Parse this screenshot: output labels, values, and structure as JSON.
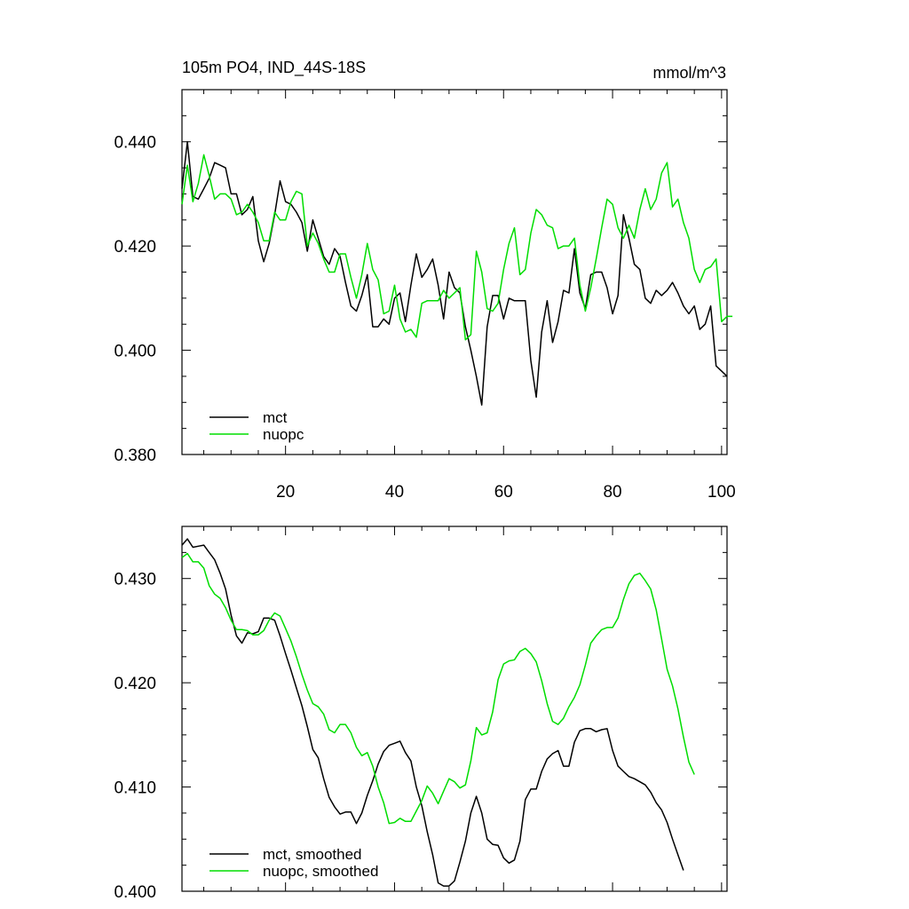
{
  "chart_data": [
    {
      "type": "line",
      "title": "105m PO4, IND_44S-18S",
      "units": "mmol/m^3",
      "xlim": [
        1,
        101
      ],
      "ylim": [
        0.38,
        0.45
      ],
      "xticks": [
        20,
        40,
        60,
        80,
        100
      ],
      "yticks": [
        0.38,
        0.4,
        0.42,
        0.44
      ],
      "ytick_labels": [
        "0.380",
        "0.400",
        "0.420",
        "0.440"
      ],
      "grid": false,
      "legend": "bottom-left",
      "series": [
        {
          "name": "mct",
          "color": "#000000",
          "values": [
            0.431,
            0.44,
            0.4295,
            0.429,
            0.431,
            0.433,
            0.436,
            0.4355,
            0.435,
            0.43,
            0.43,
            0.426,
            0.427,
            0.4295,
            0.421,
            0.417,
            0.4205,
            0.426,
            0.4325,
            0.4285,
            0.428,
            0.4265,
            0.4245,
            0.419,
            0.425,
            0.4215,
            0.418,
            0.4165,
            0.4195,
            0.418,
            0.413,
            0.4085,
            0.4075,
            0.4105,
            0.4145,
            0.4045,
            0.4045,
            0.406,
            0.405,
            0.41,
            0.411,
            0.4055,
            0.4125,
            0.4185,
            0.414,
            0.4155,
            0.4175,
            0.4125,
            0.406,
            0.415,
            0.412,
            0.411,
            0.4045,
            0.4,
            0.395,
            0.3895,
            0.4045,
            0.4105,
            0.4105,
            0.406,
            0.41,
            0.4095,
            0.4095,
            0.4095,
            0.398,
            0.391,
            0.4035,
            0.4095,
            0.4015,
            0.4055,
            0.4115,
            0.411,
            0.4195,
            0.411,
            0.408,
            0.4145,
            0.415,
            0.415,
            0.412,
            0.407,
            0.4105,
            0.426,
            0.4215,
            0.4165,
            0.4155,
            0.41,
            0.409,
            0.4115,
            0.4105,
            0.4115,
            0.413,
            0.411,
            0.4085,
            0.407,
            0.4085,
            0.404,
            0.405,
            0.4085,
            0.397,
            0.396,
            0.395
          ]
        },
        {
          "name": "nuopc",
          "color": "#00dd00",
          "values": [
            0.428,
            0.4355,
            0.4285,
            0.432,
            0.4375,
            0.4335,
            0.429,
            0.43,
            0.43,
            0.429,
            0.426,
            0.4265,
            0.428,
            0.4265,
            0.4245,
            0.421,
            0.421,
            0.4265,
            0.425,
            0.425,
            0.4285,
            0.4305,
            0.43,
            0.42,
            0.4225,
            0.4205,
            0.4175,
            0.415,
            0.415,
            0.4185,
            0.4185,
            0.414,
            0.41,
            0.4145,
            0.4205,
            0.4155,
            0.4135,
            0.407,
            0.4075,
            0.4125,
            0.406,
            0.4035,
            0.404,
            0.4025,
            0.409,
            0.4095,
            0.4095,
            0.4095,
            0.4115,
            0.41,
            0.411,
            0.412,
            0.402,
            0.403,
            0.419,
            0.415,
            0.408,
            0.4075,
            0.409,
            0.4155,
            0.4205,
            0.4235,
            0.4145,
            0.4155,
            0.4225,
            0.427,
            0.426,
            0.424,
            0.4235,
            0.4195,
            0.42,
            0.42,
            0.4215,
            0.4125,
            0.4075,
            0.412,
            0.4175,
            0.4235,
            0.429,
            0.428,
            0.4235,
            0.4215,
            0.424,
            0.4215,
            0.427,
            0.431,
            0.427,
            0.429,
            0.434,
            0.436,
            0.4275,
            0.429,
            0.4245,
            0.4215,
            0.4155,
            0.413,
            0.4155,
            0.416,
            0.4175,
            0.4055,
            0.4065,
            0.4065
          ]
        }
      ]
    },
    {
      "type": "line",
      "xlim": [
        1,
        101
      ],
      "ylim": [
        0.4,
        0.435
      ],
      "xticks": [
        20,
        40,
        60,
        80,
        100
      ],
      "yticks": [
        0.4,
        0.41,
        0.42,
        0.43
      ],
      "ytick_labels": [
        "0.400",
        "0.410",
        "0.420",
        "0.430"
      ],
      "grid": false,
      "legend": "bottom-left",
      "series": [
        {
          "name": "mct, smoothed",
          "color": "#000000",
          "values": [
            0.4332,
            0.4338,
            0.433,
            0.4331,
            0.4332,
            0.4325,
            0.4318,
            0.4305,
            0.429,
            0.4265,
            0.4245,
            0.4238,
            0.4248,
            0.4247,
            0.4249,
            0.4262,
            0.4262,
            0.426,
            0.4245,
            0.4228,
            0.4212,
            0.4195,
            0.4178,
            0.4158,
            0.4136,
            0.4128,
            0.4108,
            0.409,
            0.4081,
            0.4074,
            0.4076,
            0.4076,
            0.4065,
            0.4075,
            0.4092,
            0.4106,
            0.4122,
            0.4134,
            0.414,
            0.4142,
            0.4144,
            0.4133,
            0.4125,
            0.41,
            0.4082,
            0.4057,
            0.4035,
            0.4008,
            0.4005,
            0.4005,
            0.401,
            0.4028,
            0.4048,
            0.4075,
            0.4091,
            0.4075,
            0.405,
            0.4045,
            0.4044,
            0.4032,
            0.4027,
            0.403,
            0.4048,
            0.4088,
            0.4098,
            0.4098,
            0.4115,
            0.4127,
            0.4132,
            0.4135,
            0.412,
            0.412,
            0.4143,
            0.4154,
            0.4156,
            0.4156,
            0.4153,
            0.4155,
            0.4156,
            0.4135,
            0.412,
            0.4115,
            0.411,
            0.4108,
            0.4105,
            0.4102,
            0.4095,
            0.4085,
            0.4078,
            0.4066,
            0.405,
            0.4035,
            0.402
          ]
        },
        {
          "name": "nuopc, smoothed",
          "color": "#00dd00",
          "values": [
            0.432,
            0.4324,
            0.4316,
            0.4316,
            0.431,
            0.4293,
            0.4285,
            0.4281,
            0.4272,
            0.426,
            0.4251,
            0.4251,
            0.425,
            0.4246,
            0.4246,
            0.425,
            0.426,
            0.4267,
            0.4264,
            0.4252,
            0.424,
            0.4225,
            0.4208,
            0.4193,
            0.418,
            0.4177,
            0.417,
            0.4155,
            0.4152,
            0.416,
            0.416,
            0.4152,
            0.4138,
            0.413,
            0.4133,
            0.412,
            0.41,
            0.4085,
            0.4065,
            0.4066,
            0.407,
            0.4067,
            0.4067,
            0.4077,
            0.4087,
            0.4101,
            0.4094,
            0.4084,
            0.4096,
            0.4108,
            0.4105,
            0.4099,
            0.4102,
            0.4125,
            0.4157,
            0.415,
            0.4152,
            0.4172,
            0.4203,
            0.4218,
            0.4221,
            0.4222,
            0.423,
            0.4233,
            0.4228,
            0.422,
            0.4202,
            0.418,
            0.4163,
            0.416,
            0.4166,
            0.4177,
            0.4186,
            0.4198,
            0.4217,
            0.4238,
            0.4245,
            0.4251,
            0.4253,
            0.4253,
            0.4262,
            0.428,
            0.4295,
            0.4303,
            0.4305,
            0.4298,
            0.429,
            0.427,
            0.4242,
            0.4213,
            0.4197,
            0.4175,
            0.4148,
            0.4124,
            0.4112
          ]
        }
      ]
    }
  ]
}
